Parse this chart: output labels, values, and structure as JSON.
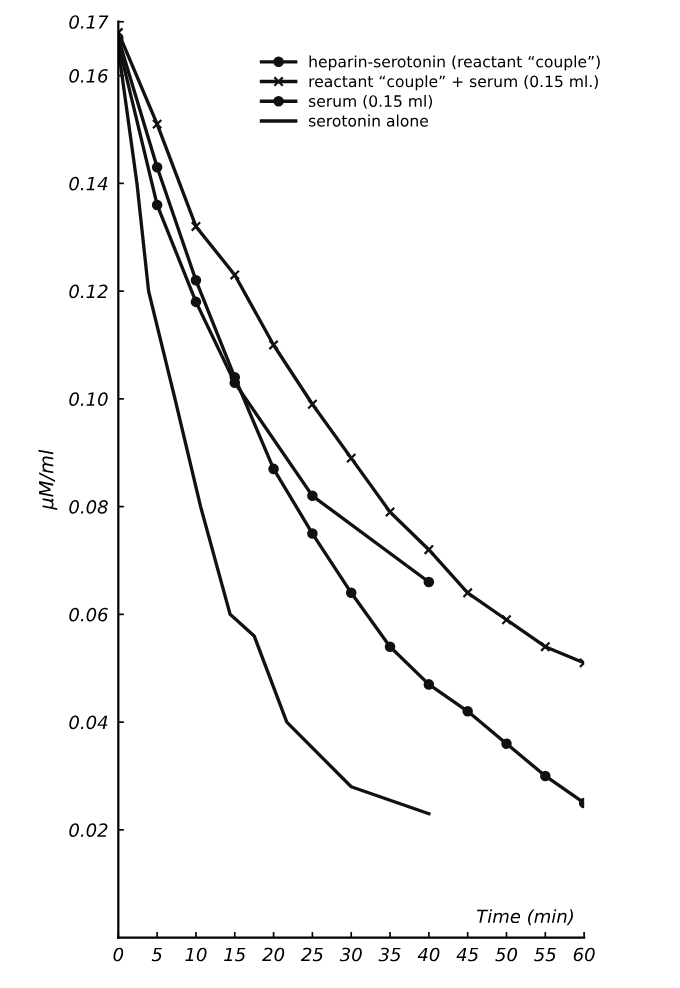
{
  "chart_data": {
    "type": "line",
    "xlabel": "Time (min)",
    "ylabel": "μM/ml",
    "xlim": [
      0,
      60
    ],
    "xticks": [
      0,
      5,
      10,
      15,
      20,
      25,
      30,
      35,
      40,
      45,
      50,
      55,
      60
    ],
    "ylim": [
      0,
      0.17
    ],
    "yticks": [
      0.02,
      0.04,
      0.06,
      0.08,
      {
        "value": 0.1,
        "label": "0.10"
      },
      0.12,
      0.14,
      0.16,
      0.17
    ],
    "grid": false,
    "legend": "top right",
    "series": [
      {
        "name": "heparin-serotonin (reactant “couple”)",
        "color": "#111111",
        "marker": "circle",
        "x": [
          0,
          5,
          10,
          15,
          25,
          40
        ],
        "values": [
          0.166,
          0.136,
          0.118,
          0.103,
          0.082,
          0.066
        ]
      },
      {
        "name": "reactant “couple” + serum (0.15 ml.)",
        "color": "#111111",
        "marker": "cross",
        "x": [
          0,
          5,
          10,
          15,
          20,
          25,
          30,
          35,
          40,
          45,
          50,
          55,
          60
        ],
        "values": [
          0.168,
          0.151,
          0.132,
          0.123,
          0.11,
          0.099,
          0.089,
          0.079,
          0.072,
          0.064,
          0.059,
          0.054,
          0.051
        ]
      },
      {
        "name": "serum (0.15 ml)",
        "color": "#111111",
        "marker": "circle",
        "x": [
          0,
          5,
          10,
          15,
          20,
          25,
          30,
          35,
          40,
          45,
          50,
          55,
          60
        ],
        "values": [
          0.167,
          0.143,
          0.122,
          0.104,
          0.087,
          0.075,
          0.064,
          0.054,
          0.047,
          0.042,
          0.036,
          0.03,
          0.025
        ]
      },
      {
        "name": "serotonin alone",
        "color": "#111111",
        "marker": "none",
        "x": [
          0,
          2.4,
          3.9,
          7.3,
          10.6,
          14.4,
          17.5,
          21.7,
          30,
          40
        ],
        "values": [
          0.165,
          0.14,
          0.12,
          0.1,
          0.08,
          0.06,
          0.056,
          0.04,
          0.028,
          0.023
        ]
      }
    ]
  }
}
